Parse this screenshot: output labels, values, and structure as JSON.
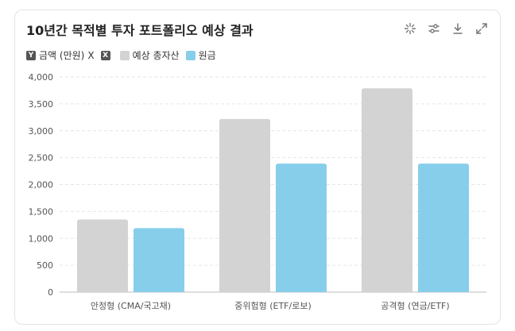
{
  "header": {
    "title": "10년간 목적별 투자 포트폴리오 예상 결과"
  },
  "toolbar": {
    "icons": [
      "sparkle-icon",
      "sliders-icon",
      "download-icon",
      "expand-icon"
    ]
  },
  "legend": {
    "axis_chip_y": "Y",
    "axis_label_y": "금액 (만원)",
    "axis_chip_x_label": "X",
    "axis_chip_x": "X"
  },
  "colors": {
    "series_total": "#d3d3d3",
    "series_principal": "#87ceeb"
  },
  "chart_data": {
    "type": "bar",
    "title": "10년간 목적별 투자 포트폴리오 예상 결과",
    "xlabel": "",
    "ylabel": "금액 (만원)",
    "categories": [
      "안정형 (CMA/국고채)",
      "중위험형 (ETF/로보)",
      "공격형 (연금/ETF)"
    ],
    "series": [
      {
        "name": "예상 총자산",
        "values": [
          1350,
          3220,
          3790
        ]
      },
      {
        "name": "원금",
        "values": [
          1190,
          2390,
          2390
        ]
      }
    ],
    "ylim": [
      0,
      4000
    ],
    "yticks": [
      "0",
      "500",
      "1,000",
      "1,500",
      "2,000",
      "2,500",
      "3,000",
      "3,500",
      "4,000"
    ],
    "grid": true,
    "legend_position": "top-left"
  }
}
